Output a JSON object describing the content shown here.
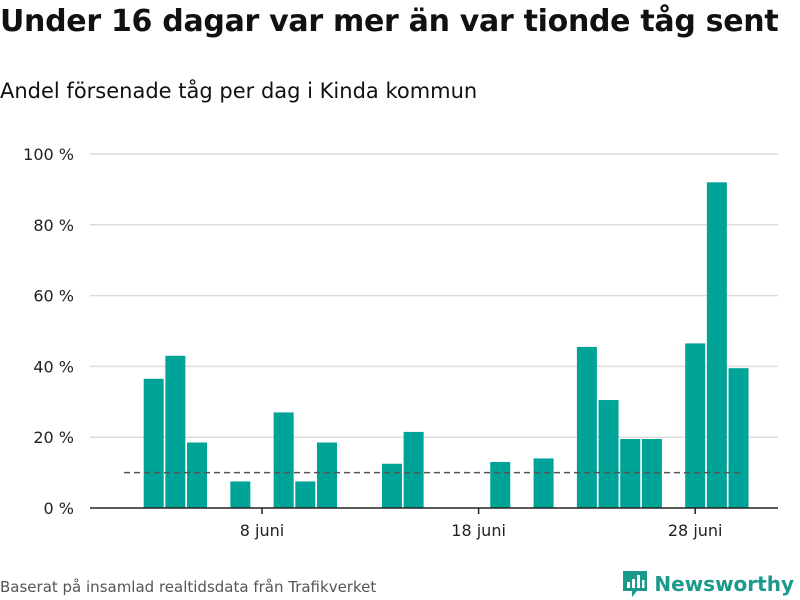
{
  "title": "Under 16 dagar var mer än var tionde tåg sent",
  "subtitle": "Andel försenade tåg per dag i Kinda kommun",
  "footer": {
    "source": "Baserat på insamlad realtidsdata från Trafikverket",
    "brand": "Newsworthy"
  },
  "colors": {
    "bar": "#00a398",
    "reference_line": "#555555",
    "grid": "#dddddd",
    "brand": "#1b9a8b"
  },
  "chart_data": {
    "type": "bar",
    "x_unit": "day of June",
    "x": [
      3,
      4,
      5,
      6,
      7,
      8,
      9,
      10,
      11,
      12,
      13,
      14,
      15,
      16,
      17,
      18,
      19,
      20,
      21,
      22,
      23,
      24,
      25,
      26,
      27,
      28,
      29,
      30
    ],
    "values": [
      36.5,
      43,
      18.5,
      0,
      7.5,
      0,
      27,
      7.5,
      18.5,
      0,
      0,
      12.5,
      21.5,
      0,
      0,
      0,
      13,
      0,
      14,
      0,
      45.5,
      30.5,
      19.5,
      19.5,
      0,
      46.5,
      92,
      39.5
    ],
    "xlabel": "",
    "ylabel": "",
    "ylim": [
      0,
      100
    ],
    "yticks": [
      0,
      20,
      40,
      60,
      80,
      100
    ],
    "ytick_labels": [
      "0 %",
      "20 %",
      "40 %",
      "60 %",
      "80 %",
      "100 %"
    ],
    "xticks": [
      8,
      18,
      28
    ],
    "xtick_labels": [
      "8 juni",
      "18 juni",
      "28 juni"
    ],
    "reference_line": {
      "value": 10,
      "style": "dashed"
    },
    "grid": true,
    "legend": "none"
  }
}
